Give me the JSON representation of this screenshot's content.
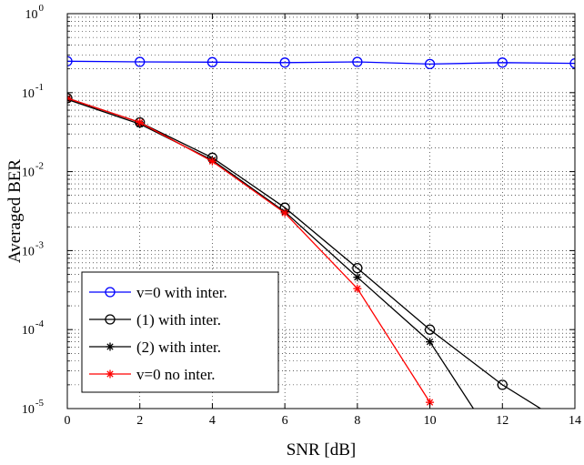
{
  "chart_data": {
    "type": "line",
    "xlabel": "SNR [dB]",
    "ylabel": "Averaged BER",
    "xlim": [
      0,
      14
    ],
    "ylim": [
      1e-05,
      1
    ],
    "yscale": "log",
    "grid": true,
    "legend_position": "bottom-left",
    "x_ticks": [
      "0",
      "2",
      "4",
      "6",
      "8",
      "10",
      "12",
      "14"
    ],
    "y_ticks": [
      {
        "base": "10",
        "exp": "0"
      },
      {
        "base": "10",
        "exp": "-1"
      },
      {
        "base": "10",
        "exp": "-2"
      },
      {
        "base": "10",
        "exp": "-3"
      },
      {
        "base": "10",
        "exp": "-4"
      },
      {
        "base": "10",
        "exp": "-5"
      }
    ],
    "series": [
      {
        "name": "v=0 with inter.",
        "color": "#0000ff",
        "marker": "circle",
        "x": [
          0,
          2,
          4,
          6,
          8,
          10,
          12,
          14
        ],
        "y": [
          0.25,
          0.245,
          0.243,
          0.24,
          0.245,
          0.23,
          0.24,
          0.235
        ]
      },
      {
        "name": "(1) with inter.",
        "color": "#000000",
        "marker": "circle",
        "x": [
          0,
          2,
          4,
          6,
          8,
          10,
          12,
          13.3
        ],
        "y": [
          0.085,
          0.042,
          0.015,
          0.0035,
          0.0006,
          0.0001,
          2e-05,
          8.5e-06
        ]
      },
      {
        "name": "(2) with inter.",
        "color": "#000000",
        "marker": "star",
        "x": [
          0,
          2,
          4,
          6,
          8,
          10,
          11.3
        ],
        "y": [
          0.082,
          0.04,
          0.014,
          0.0031,
          0.00046,
          7e-05,
          8.5e-06
        ]
      },
      {
        "name": "v=0 no inter.",
        "color": "#ff0000",
        "marker": "star",
        "x": [
          0,
          2,
          4,
          6,
          8,
          10
        ],
        "y": [
          0.085,
          0.042,
          0.0135,
          0.003,
          0.00033,
          1.2e-05
        ]
      }
    ]
  }
}
